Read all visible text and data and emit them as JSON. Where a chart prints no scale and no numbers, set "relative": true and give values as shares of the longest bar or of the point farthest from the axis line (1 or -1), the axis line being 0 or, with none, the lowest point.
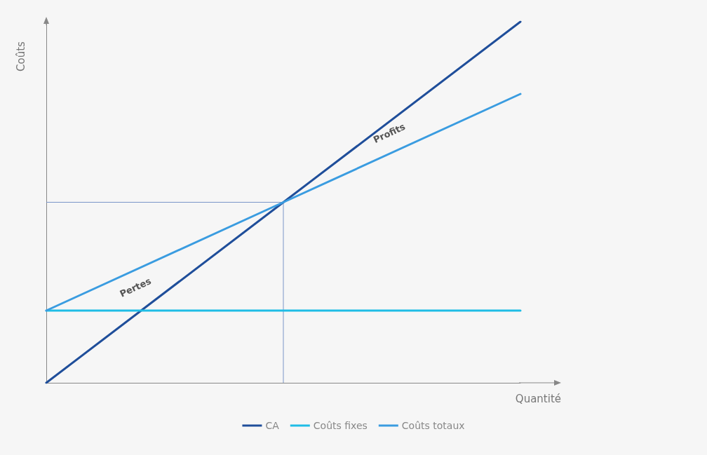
{
  "chart_data": {
    "type": "line",
    "xlabel": "Quantité",
    "ylabel": "Coûts",
    "relative": true,
    "categories": [
      null,
      null,
      null
    ],
    "grid": false,
    "legend": "bottom",
    "marker": "none",
    "line_style": "solid",
    "series": [
      {
        "name": "CA",
        "color": "#1f4e9a",
        "values": [
          0,
          0.5,
          1
        ]
      },
      {
        "name": "Coûts fixes",
        "color": "#1fbde6",
        "values": [
          0.2,
          0.2,
          0.2
        ]
      },
      {
        "name": "Coûts totaux",
        "color": "#3a9ce0",
        "values": [
          0.2,
          0.5,
          0.8
        ]
      }
    ],
    "ref_lines": [
      {
        "axis": "y",
        "value": 0.5,
        "color": "#7a95c8"
      }
    ],
    "annotations": [
      "Pertes",
      "Profits"
    ]
  }
}
